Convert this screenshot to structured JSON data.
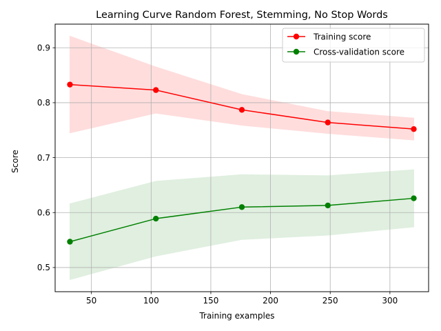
{
  "chart_data": {
    "type": "line",
    "title": "Learning Curve Random Forest, Stemming, No Stop Words",
    "xlabel": "Training examples",
    "ylabel": "Score",
    "x": [
      32,
      104,
      176,
      248,
      320
    ],
    "xlim": [
      19.6,
      332.4
    ],
    "ylim": [
      0.456,
      0.943
    ],
    "xticks": [
      50,
      100,
      150,
      200,
      250,
      300
    ],
    "yticks": [
      0.5,
      0.6,
      0.7,
      0.8,
      0.9
    ],
    "grid": true,
    "legend_position": "top-right",
    "series": [
      {
        "name": "Training score",
        "color": "#ff0000",
        "values": [
          0.833,
          0.823,
          0.787,
          0.764,
          0.752
        ],
        "band_upper": [
          0.921,
          0.865,
          0.815,
          0.784,
          0.772
        ],
        "band_lower": [
          0.745,
          0.781,
          0.759,
          0.744,
          0.732
        ],
        "band_color": "#ffdddd"
      },
      {
        "name": "Cross-validation score",
        "color": "#008000",
        "values": [
          0.547,
          0.589,
          0.61,
          0.613,
          0.626
        ],
        "band_upper": [
          0.616,
          0.657,
          0.669,
          0.667,
          0.678
        ],
        "band_lower": [
          0.478,
          0.521,
          0.551,
          0.559,
          0.574
        ],
        "band_color": "#e0efe0"
      }
    ]
  }
}
